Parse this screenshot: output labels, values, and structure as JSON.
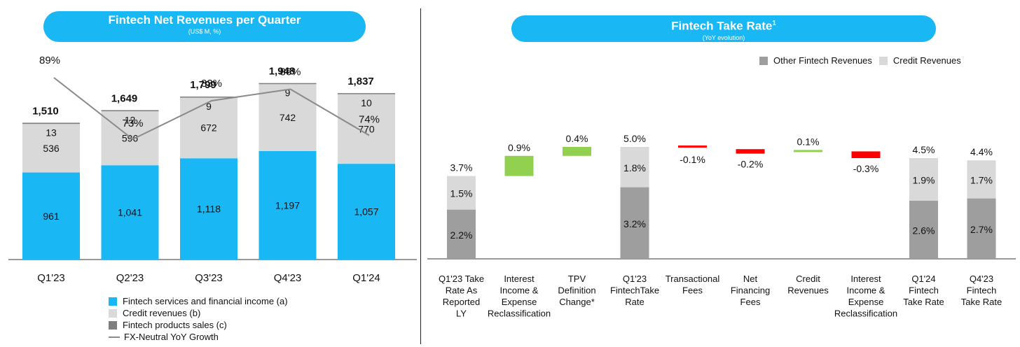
{
  "left": {
    "title": "Fintech Net Revenues per Quarter",
    "subtitle": "(US$ M, %)",
    "legend": [
      {
        "label": "Fintech services and financial income (a)",
        "color": "#1ab7f5",
        "kind": "box"
      },
      {
        "label": "Credit revenues (b)",
        "color": "#d9d9d9",
        "kind": "box"
      },
      {
        "label": "Fintech products sales (c)",
        "color": "#7f7f7f",
        "kind": "box"
      },
      {
        "label": "FX-Neutral YoY Growth",
        "color": "#8a8a8a",
        "kind": "line"
      }
    ]
  },
  "right": {
    "title": "Fintech Take Rate",
    "title_sup": "1",
    "subtitle": "(YoY evolution)",
    "legend": [
      {
        "label": "Other Fintech Revenues",
        "color": "#9e9e9e"
      },
      {
        "label": "Credit Revenues",
        "color": "#d9d9d9"
      }
    ]
  },
  "chart_data": [
    {
      "type": "bar",
      "stacked": true,
      "title": "Fintech Net Revenues per Quarter",
      "subtitle": "(US$ M, %)",
      "categories": [
        "Q1'23",
        "Q2'23",
        "Q3'23",
        "Q4'23",
        "Q1'24"
      ],
      "series": [
        {
          "name": "Fintech services and financial income (a)",
          "color": "#1ab7f5",
          "values": [
            961,
            1041,
            1118,
            1197,
            1057
          ],
          "labels": [
            "961",
            "1,041",
            "1,118",
            "1,197",
            "1,057"
          ]
        },
        {
          "name": "Credit revenues (b)",
          "color": "#d9d9d9",
          "values": [
            536,
            596,
            672,
            742,
            770
          ],
          "labels": [
            "536",
            "596",
            "672",
            "742",
            "770"
          ]
        },
        {
          "name": "Fintech products sales (c)",
          "color": "#7f7f7f",
          "values": [
            13,
            12,
            9,
            9,
            10
          ],
          "labels": [
            "13",
            "12",
            "9",
            "9",
            "10"
          ]
        }
      ],
      "totals": [
        1510,
        1649,
        1799,
        1948,
        1837
      ],
      "total_labels": [
        "1,510",
        "1,649",
        "1,799",
        "1,948",
        "1,837"
      ],
      "line": {
        "name": "FX-Neutral YoY Growth",
        "values": [
          89,
          73,
          83,
          86,
          74
        ],
        "labels": [
          "89%",
          "73%",
          "83%",
          "86%",
          "74%"
        ],
        "color": "#8a8a8a"
      },
      "legend_position": "bottom"
    },
    {
      "type": "bar",
      "subtype": "waterfall",
      "title": "Fintech Take Rate",
      "subtitle": "(YoY evolution)",
      "unit": "%",
      "categories": [
        [
          "Q1'23 Take",
          "Rate As",
          "Reported",
          "LY"
        ],
        [
          "Interest",
          "Income &",
          "Expense",
          "Reclassification"
        ],
        [
          "TPV",
          "Definition",
          "Change*"
        ],
        [
          "Q1'23",
          "FintechTake",
          "Rate"
        ],
        [
          "Transactional",
          "Fees"
        ],
        [
          "Net",
          "Financing",
          "Fees"
        ],
        [
          "Credit",
          "Revenues"
        ],
        [
          "Interest",
          "Income &",
          "Expense",
          "Reclassification"
        ],
        [
          "Q1'24",
          "Fintech",
          "Take Rate"
        ],
        [
          "Q4'23",
          "Fintech",
          "Take Rate"
        ]
      ],
      "bars": [
        {
          "kind": "total",
          "other": 2.2,
          "credit": 1.5,
          "total": 3.7,
          "other_label": "2.2%",
          "credit_label": "1.5%",
          "total_label": "3.7%"
        },
        {
          "kind": "delta",
          "value": 0.9,
          "label": "0.9%"
        },
        {
          "kind": "delta",
          "value": 0.4,
          "label": "0.4%"
        },
        {
          "kind": "total",
          "other": 3.2,
          "credit": 1.8,
          "total": 5.0,
          "other_label": "3.2%",
          "credit_label": "1.8%",
          "total_label": "5.0%"
        },
        {
          "kind": "delta",
          "value": -0.1,
          "label": "-0.1%"
        },
        {
          "kind": "delta",
          "value": -0.2,
          "label": "-0.2%"
        },
        {
          "kind": "delta",
          "value": 0.1,
          "label": "0.1%"
        },
        {
          "kind": "delta",
          "value": -0.3,
          "label": "-0.3%"
        },
        {
          "kind": "total",
          "other": 2.6,
          "credit": 1.9,
          "total": 4.5,
          "other_label": "2.6%",
          "credit_label": "1.9%",
          "total_label": "4.5%"
        },
        {
          "kind": "total",
          "other": 2.7,
          "credit": 1.7,
          "total": 4.4,
          "other_label": "2.7%",
          "credit_label": "1.7%",
          "total_label": "4.4%"
        }
      ],
      "colors": {
        "other": "#9e9e9e",
        "credit": "#d9d9d9",
        "positive": "#92d050",
        "negative": "#ff0000"
      },
      "legend_position": "top-right"
    }
  ]
}
